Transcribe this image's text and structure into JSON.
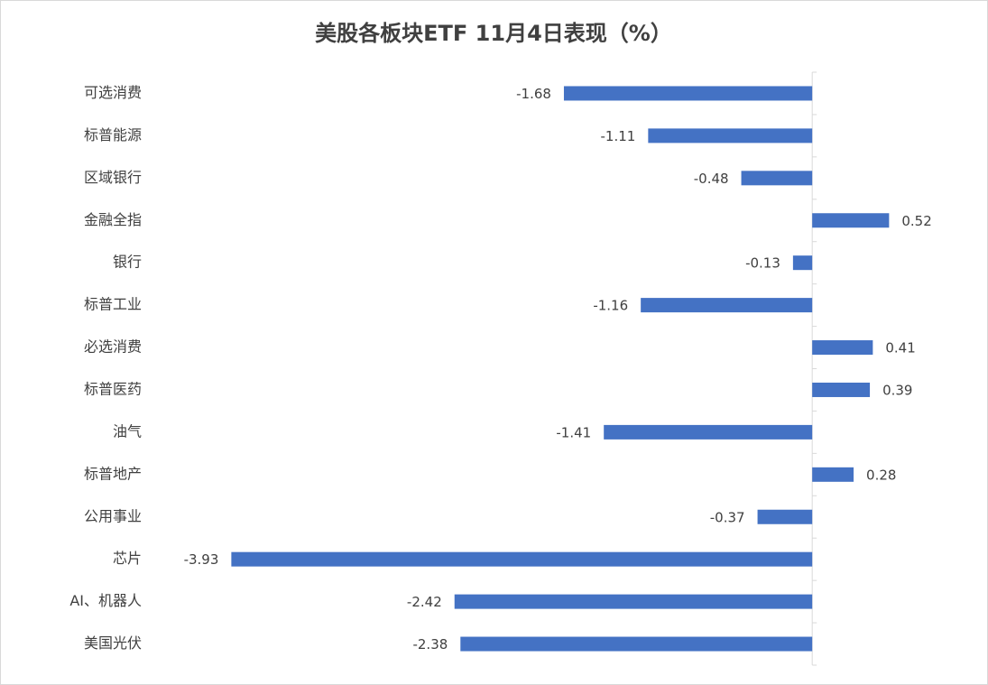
{
  "chart_data": {
    "type": "barh",
    "title": "美股各板块ETF  11月4日表现（%）",
    "categories": [
      "可选消费",
      "标普能源",
      "区域银行",
      "金融全指",
      "银行",
      "标普工业",
      "必选消费",
      "标普医药",
      "油气",
      "标普地产",
      "公用事业",
      "芯片",
      "AI、机器人",
      "美国光伏"
    ],
    "values": [
      -1.68,
      -1.11,
      -0.48,
      0.52,
      -0.13,
      -1.16,
      0.41,
      0.39,
      -1.41,
      0.28,
      -0.37,
      -3.93,
      -2.42,
      -2.38
    ],
    "color": "#4472c4",
    "xlim": [
      -4.5,
      1
    ]
  }
}
